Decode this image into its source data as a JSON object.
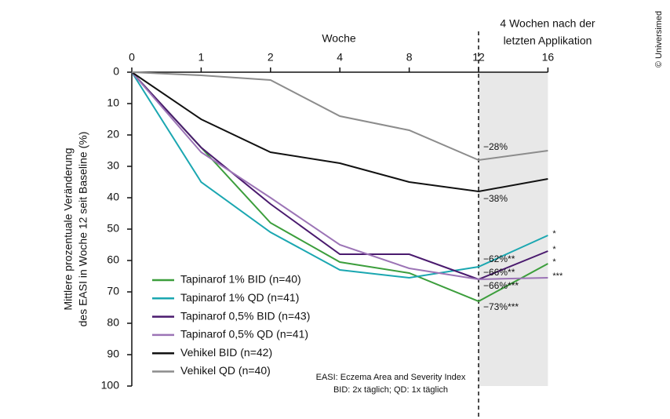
{
  "chart_data": {
    "type": "line",
    "x_label": "Woche",
    "y_label": [
      "Mittlere prozentuale Veränderung",
      "des EASI in Woche 12 seit Baseline (%)"
    ],
    "annotation": [
      "4 Wochen nach der",
      "letzten Applikation"
    ],
    "footnote": [
      "EASI: Eczema Area and Severity Index",
      "BID: 2x täglich; QD: 1x täglich"
    ],
    "copyright": "© Universimed",
    "categories": [
      "0",
      "1",
      "2",
      "4",
      "8",
      "12",
      "16"
    ],
    "ylim": [
      0,
      100
    ],
    "yticks": [
      0,
      10,
      20,
      30,
      40,
      50,
      60,
      70,
      80,
      90,
      100
    ],
    "y_inverted": true,
    "series": [
      {
        "name": "Tapinarof 1% BID (n=40)",
        "color": "#3c9e3c",
        "values": [
          0,
          24,
          48,
          60.5,
          64,
          73,
          61
        ],
        "value_labels": [
          null,
          null,
          null,
          null,
          null,
          "−73%***",
          null
        ],
        "significance": [
          null,
          null,
          null,
          null,
          null,
          null,
          "*"
        ]
      },
      {
        "name": "Tapinarof 1% QD (n=41)",
        "color": "#1ba7b1",
        "values": [
          0,
          35,
          51,
          63,
          65.5,
          62,
          52
        ],
        "value_labels": [
          null,
          null,
          null,
          null,
          null,
          "−62%**",
          null
        ],
        "significance": [
          null,
          null,
          null,
          null,
          null,
          null,
          "*"
        ]
      },
      {
        "name": "Tapinarof 0,5% BID (n=43)",
        "color": "#4a1a6e",
        "values": [
          0,
          24,
          42,
          58,
          58,
          66,
          57
        ],
        "value_labels": [
          null,
          null,
          null,
          null,
          null,
          "−66%**",
          null
        ],
        "significance": [
          null,
          null,
          null,
          null,
          null,
          null,
          "*"
        ]
      },
      {
        "name": "Tapinarof 0,5% QD (n=41)",
        "color": "#9c74b6",
        "values": [
          0,
          25.5,
          40,
          55,
          62.5,
          66,
          65.5
        ],
        "value_labels": [
          null,
          null,
          null,
          null,
          null,
          "−66%***",
          null
        ],
        "significance": [
          null,
          null,
          null,
          null,
          null,
          null,
          "***"
        ]
      },
      {
        "name": "Vehikel BID (n=42)",
        "color": "#111111",
        "values": [
          0,
          15,
          25.5,
          29,
          35,
          38,
          34
        ],
        "value_labels": [
          null,
          null,
          null,
          null,
          null,
          "−38%",
          null
        ],
        "significance": [
          null,
          null,
          null,
          null,
          null,
          null,
          null
        ]
      },
      {
        "name": "Vehikel QD (n=40)",
        "color": "#8c8c8c",
        "values": [
          0,
          1,
          2.5,
          14,
          18.5,
          28,
          25
        ],
        "value_labels": [
          null,
          null,
          null,
          null,
          null,
          "−28%",
          null
        ],
        "significance": [
          null,
          null,
          null,
          null,
          null,
          null,
          null
        ]
      }
    ]
  }
}
